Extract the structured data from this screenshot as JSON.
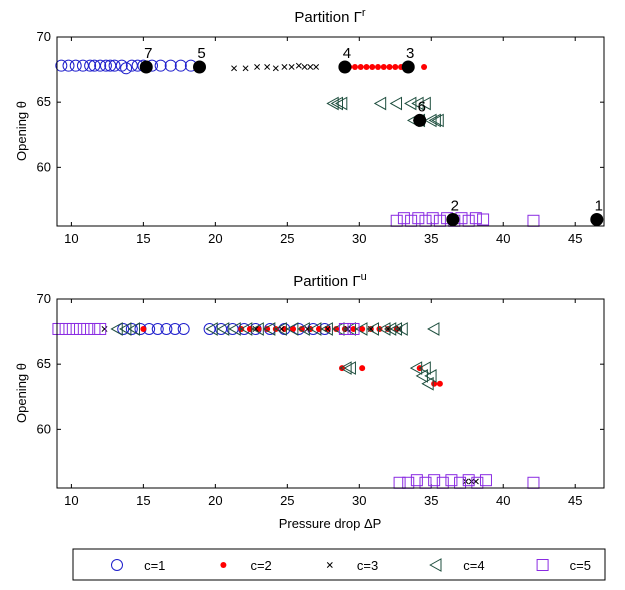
{
  "chart_data": [
    {
      "type": "scatter",
      "title": "Partition Γ",
      "title_sup": "r",
      "xlabel": "",
      "ylabel": "Opening θ",
      "xlim": [
        9,
        47
      ],
      "ylim": [
        55.5,
        70
      ],
      "xticks": [
        10,
        15,
        20,
        25,
        30,
        35,
        40,
        45
      ],
      "yticks": [
        60,
        65,
        70
      ],
      "grid": false,
      "series": [
        {
          "name": "c=1",
          "marker": "circle-open",
          "color": "#1f1fcc",
          "x": [
            9.3,
            9.8,
            10.3,
            10.8,
            11.3,
            11.6,
            12.0,
            12.4,
            12.7,
            13.0,
            13.5,
            13.8,
            14.2,
            14.6,
            15.0,
            15.6,
            16.2,
            16.9,
            17.6,
            18.3
          ],
          "y": [
            67.8,
            67.8,
            67.8,
            67.8,
            67.8,
            67.8,
            67.8,
            67.8,
            67.8,
            67.8,
            67.8,
            67.6,
            67.8,
            67.8,
            67.8,
            67.8,
            67.8,
            67.8,
            67.8,
            67.8
          ]
        },
        {
          "name": "c=2",
          "marker": "dot",
          "color": "#ff0000",
          "x": [
            29.3,
            29.7,
            30.1,
            30.5,
            30.9,
            31.3,
            31.7,
            32.1,
            32.5,
            32.9,
            33.3,
            34.5
          ],
          "y": [
            67.7,
            67.7,
            67.7,
            67.7,
            67.7,
            67.7,
            67.7,
            67.7,
            67.7,
            67.7,
            67.7,
            67.7
          ]
        },
        {
          "name": "c=3",
          "marker": "x",
          "color": "#000000",
          "x": [
            21.3,
            22.1,
            22.9,
            23.6,
            24.2,
            24.8,
            25.3,
            25.8,
            26.2,
            26.6,
            27.0
          ],
          "y": [
            67.6,
            67.6,
            67.7,
            67.7,
            67.6,
            67.7,
            67.7,
            67.8,
            67.7,
            67.7,
            67.7
          ]
        },
        {
          "name": "c=4",
          "marker": "triangle-left",
          "color": "#1f4f3f",
          "x": [
            28.2,
            28.5,
            28.8,
            31.5,
            32.6,
            33.6,
            34.1,
            34.6,
            35.0,
            35.3,
            35.5,
            33.8,
            34.2
          ],
          "y": [
            64.9,
            64.9,
            64.9,
            64.9,
            64.9,
            64.9,
            64.9,
            64.9,
            63.6,
            63.6,
            63.6,
            63.6,
            63.6
          ]
        },
        {
          "name": "c=5",
          "marker": "square-open",
          "color": "#8a2be2",
          "x": [
            32.6,
            33.1,
            33.6,
            34.1,
            34.6,
            35.1,
            35.6,
            36.1,
            36.6,
            37.1,
            37.6,
            38.1,
            38.6,
            42.1
          ],
          "y": [
            55.9,
            56.1,
            55.9,
            56.1,
            55.9,
            56.1,
            55.9,
            56.1,
            55.9,
            56.1,
            55.9,
            56.1,
            56.0,
            55.9
          ]
        }
      ],
      "prototypes": [
        {
          "label": "1",
          "x": 46.5,
          "y": 56.0
        },
        {
          "label": "2",
          "x": 36.5,
          "y": 56.0
        },
        {
          "label": "3",
          "x": 33.4,
          "y": 67.7
        },
        {
          "label": "4",
          "x": 29.0,
          "y": 67.7
        },
        {
          "label": "5",
          "x": 18.9,
          "y": 67.7
        },
        {
          "label": "6",
          "x": 34.2,
          "y": 63.6
        },
        {
          "label": "7",
          "x": 15.2,
          "y": 67.7
        }
      ]
    },
    {
      "type": "scatter",
      "title": "Partition Γ",
      "title_sup": "u",
      "xlabel": "Pressure drop ΔP",
      "ylabel": "Opening θ",
      "xlim": [
        9,
        47
      ],
      "ylim": [
        55.5,
        70
      ],
      "xticks": [
        10,
        15,
        20,
        25,
        30,
        35,
        40,
        45
      ],
      "yticks": [
        60,
        65,
        70
      ],
      "grid": false,
      "series": [
        {
          "name": "c=1",
          "marker": "circle-open",
          "color": "#1f1fcc",
          "x": [
            13.6,
            14.2,
            14.8,
            15.4,
            16.0,
            16.6,
            17.2,
            17.8,
            19.6,
            20.4,
            21.2,
            22.0,
            22.8,
            23.8,
            24.8,
            25.8,
            26.8,
            27.6
          ],
          "y": [
            67.7,
            67.7,
            67.7,
            67.7,
            67.7,
            67.7,
            67.7,
            67.7,
            67.7,
            67.7,
            67.7,
            67.7,
            67.7,
            67.7,
            67.7,
            67.7,
            67.7,
            67.7
          ]
        },
        {
          "name": "c=2",
          "marker": "dot",
          "color": "#ff0000",
          "x": [
            15.0,
            21.8,
            22.4,
            23.0,
            23.6,
            24.2,
            24.8,
            25.4,
            26.0,
            26.6,
            27.2,
            27.8,
            28.4,
            29.0,
            29.6,
            30.2,
            30.8,
            31.4,
            32.0,
            32.6,
            28.8,
            30.2,
            34.2,
            35.2,
            35.6
          ],
          "y": [
            67.7,
            67.7,
            67.7,
            67.7,
            67.7,
            67.7,
            67.7,
            67.7,
            67.7,
            67.7,
            67.7,
            67.7,
            67.7,
            67.7,
            67.7,
            67.7,
            67.7,
            67.7,
            67.7,
            67.7,
            64.7,
            64.7,
            64.7,
            63.5,
            63.5
          ]
        },
        {
          "name": "c=3",
          "marker": "x",
          "color": "#000000",
          "x": [
            12.3,
            22.8,
            24.6,
            26.4,
            27.8,
            29.2,
            30.8,
            32.0,
            32.8,
            37.4,
            37.8,
            38.1
          ],
          "y": [
            67.7,
            67.7,
            67.7,
            67.7,
            67.7,
            67.7,
            67.7,
            67.7,
            67.7,
            56.0,
            56.0,
            56.0
          ]
        },
        {
          "name": "c=4",
          "marker": "triangle-left",
          "color": "#1f4f3f",
          "x": [
            13.2,
            13.8,
            14.4,
            19.8,
            20.6,
            21.4,
            22.2,
            23.0,
            23.8,
            24.6,
            25.4,
            26.2,
            27.0,
            27.8,
            28.6,
            29.4,
            30.2,
            31.0,
            31.8,
            32.2,
            32.6,
            33.0,
            35.2,
            29.1,
            29.4,
            34.0,
            34.6,
            34.4,
            35.0,
            34.8
          ],
          "y": [
            67.7,
            67.7,
            67.7,
            67.7,
            67.7,
            67.7,
            67.7,
            67.7,
            67.7,
            67.7,
            67.7,
            67.7,
            67.7,
            67.7,
            67.7,
            67.7,
            67.7,
            67.7,
            67.7,
            67.7,
            67.7,
            67.7,
            67.7,
            64.7,
            64.7,
            64.7,
            64.7,
            64.1,
            64.1,
            63.5
          ]
        },
        {
          "name": "c=5",
          "marker": "square-open",
          "color": "#8a2be2",
          "x": [
            9.1,
            9.6,
            10.1,
            10.6,
            11.1,
            11.6,
            12.0,
            29.0,
            29.6,
            32.8,
            33.4,
            34.0,
            34.6,
            35.2,
            35.8,
            36.4,
            37.0,
            37.6,
            38.2,
            38.8,
            42.1
          ],
          "y": [
            67.7,
            67.7,
            67.7,
            67.7,
            67.7,
            67.7,
            67.7,
            67.7,
            67.7,
            55.9,
            55.9,
            56.1,
            55.9,
            56.1,
            55.9,
            56.1,
            55.9,
            56.1,
            55.9,
            56.1,
            55.9
          ]
        }
      ]
    }
  ],
  "legend": {
    "position": "bottom",
    "items": [
      {
        "label": "c=1",
        "marker": "circle-open",
        "color": "#1f1fcc"
      },
      {
        "label": "c=2",
        "marker": "dot",
        "color": "#ff0000"
      },
      {
        "label": "c=3",
        "marker": "x",
        "color": "#000000"
      },
      {
        "label": "c=4",
        "marker": "triangle-left",
        "color": "#1f4f3f"
      },
      {
        "label": "c=5",
        "marker": "square-open",
        "color": "#8a2be2"
      }
    ]
  }
}
